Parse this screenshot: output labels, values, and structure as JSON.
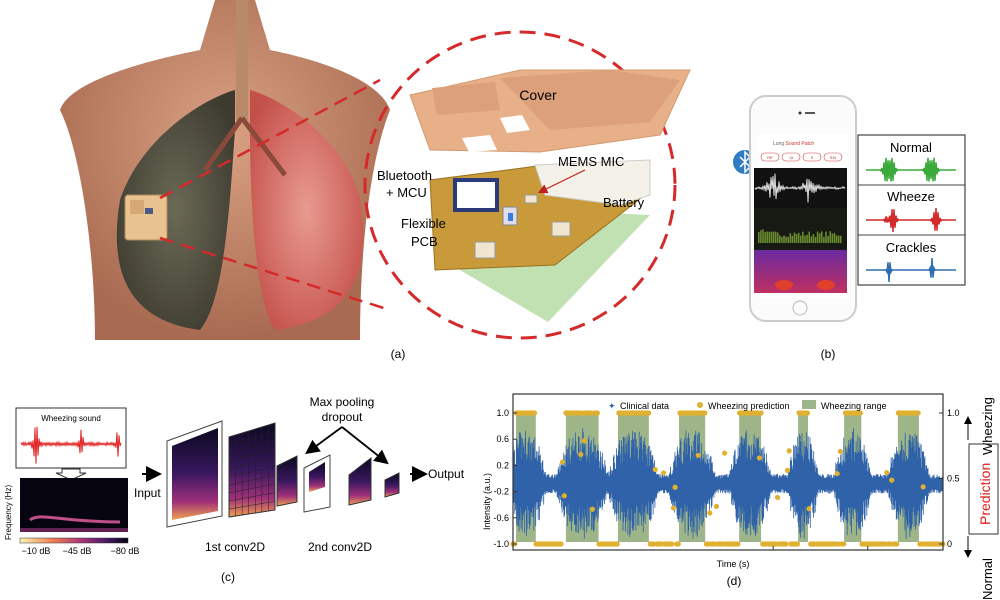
{
  "panel_a": {
    "label": "(a)",
    "cover": "Cover",
    "bluetooth_line1": "Bluetooth",
    "bluetooth_line2": "+ MCU",
    "flexible_line1": "Flexible",
    "flexible_line2": "PCB",
    "mems_mic": "MEMS MIC",
    "battery": "Battery",
    "ellipse_color": "#d42a2a"
  },
  "panel_b": {
    "label": "(b)",
    "bluetooth_icon": "bluetooth-icon",
    "app_title_part1": "Lung ",
    "app_title_part2": "Sound Patch",
    "app_buttons": [
      "RE",
      "◁x",
      "✕",
      "S/N"
    ],
    "classes": [
      {
        "name": "Normal",
        "color": "#3aaa3a"
      },
      {
        "name": "Wheeze",
        "color": "#d42a2a"
      },
      {
        "name": "Crackles",
        "color": "#2f6db0"
      }
    ]
  },
  "panel_c": {
    "label": "(c)",
    "wheezing_sound": "Wheezing sound",
    "frequency_label": "Frequency (Hz)",
    "colorbar_ticks": [
      "−10 dB",
      "−45 dB",
      "−80 dB"
    ],
    "input": "Input",
    "output": "Output",
    "max_pooling_line1": "Max pooling",
    "max_pooling_line2": "dropout",
    "conv1": "1st conv2D",
    "conv2": "2nd conv2D"
  },
  "panel_d": {
    "label": "(d)"
  },
  "chart_data": {
    "type": "line",
    "xlabel": "Time (s)",
    "ylabel": "Intensity (a.u.)",
    "ylim": [
      -1.1,
      1.2
    ],
    "yticks": [
      "1.0",
      "0.6",
      "0.2",
      "-0.2",
      "-0.6",
      "-1.0"
    ],
    "ytick_values": [
      1.0,
      0.6,
      0.2,
      -0.2,
      -0.6,
      -1.0
    ],
    "y2label": "Prediction",
    "y2label_color": "#e02020",
    "y2_top": "Wheezing",
    "y2_bottom": "Normal",
    "y2ticks": [
      "1.0",
      "0.5",
      "0"
    ],
    "y2tick_values": [
      1.0,
      0.5,
      0
    ],
    "time_range": [
      0,
      100
    ],
    "legend": [
      {
        "name": "Clinical data",
        "color": "#2f62a8"
      },
      {
        "name": "Wheezing prediction",
        "color": "#e0b030"
      },
      {
        "name": "Wheezing range",
        "color": "#9db588"
      }
    ],
    "legend_placement": "top-center",
    "wheezing_ranges": [
      [
        0.7,
        5.3
      ],
      [
        12.3,
        19.9
      ],
      [
        24.4,
        31.6
      ],
      [
        38.6,
        44.7
      ],
      [
        52.6,
        57.7
      ],
      [
        66.3,
        68.6
      ],
      [
        77.0,
        81.0
      ],
      [
        89.5,
        94.4
      ]
    ],
    "prediction_levels": {
      "wheezing": 1.0,
      "normal": 0
    }
  }
}
